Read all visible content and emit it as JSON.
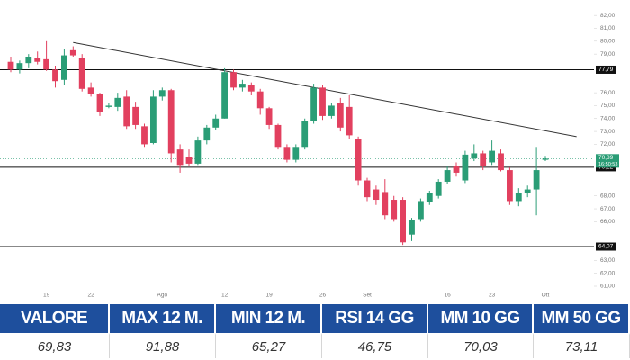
{
  "chart_data": {
    "type": "candlestick",
    "categories": [
      null,
      null,
      null,
      null,
      "19",
      null,
      null,
      null,
      null,
      "22",
      null,
      null,
      null,
      null,
      null,
      null,
      null,
      "Ago",
      null,
      null,
      null,
      null,
      null,
      null,
      "12",
      null,
      null,
      null,
      null,
      "19",
      null,
      null,
      null,
      null,
      null,
      "26",
      null,
      null,
      null,
      null,
      "Set",
      null,
      null,
      null,
      null,
      null,
      null,
      null,
      null,
      "16",
      null,
      null,
      null,
      null,
      "23",
      null,
      null,
      null,
      null,
      null,
      "Ott"
    ],
    "open": [
      78.4,
      77.8,
      78.3,
      78.7,
      78.6,
      77.8,
      77.0,
      79.3,
      78.7,
      76.4,
      75.9,
      74.9,
      74.9,
      75.7,
      74.9,
      73.4,
      72.1,
      75.7,
      76.2,
      71.6,
      71.0,
      70.5,
      72.3,
      73.3,
      74.0,
      77.6,
      76.4,
      76.6,
      76.1,
      74.8,
      73.5,
      71.8,
      70.8,
      71.8,
      73.8,
      76.4,
      74.2,
      75.2,
      74.9,
      72.4,
      69.2,
      68.5,
      68.3,
      67.7,
      67.7,
      65.0,
      66.2,
      67.5,
      68.0,
      69.1,
      70.3,
      69.2,
      70.9,
      71.3,
      70.6,
      71.3,
      70.0,
      67.6,
      68.2,
      68.5,
      70.8
    ],
    "high": [
      78.8,
      78.5,
      79.0,
      79.2,
      80.0,
      78.1,
      79.4,
      79.6,
      79.0,
      76.8,
      76.0,
      75.2,
      76.0,
      76.2,
      75.3,
      73.6,
      76.2,
      76.4,
      76.3,
      72.0,
      71.6,
      72.6,
      73.5,
      74.3,
      77.9,
      77.8,
      77.0,
      76.8,
      76.3,
      74.9,
      73.6,
      72.0,
      72.0,
      74.0,
      76.7,
      76.6,
      75.2,
      75.6,
      75.8,
      72.6,
      69.4,
      68.8,
      69.3,
      68.0,
      67.9,
      66.3,
      67.8,
      68.4,
      69.3,
      70.3,
      70.6,
      71.5,
      72.0,
      71.5,
      72.3,
      71.6,
      70.2,
      68.6,
      68.8,
      71.8,
      71.1
    ],
    "low": [
      77.6,
      77.5,
      77.9,
      78.2,
      77.7,
      76.4,
      76.6,
      78.8,
      76.1,
      75.7,
      74.2,
      74.8,
      74.6,
      73.2,
      73.2,
      71.8,
      72.0,
      75.4,
      70.6,
      69.8,
      70.3,
      70.4,
      72.0,
      73.1,
      74.0,
      76.2,
      76.1,
      75.8,
      74.3,
      73.2,
      71.6,
      70.6,
      70.6,
      71.6,
      73.6,
      73.9,
      74.0,
      73.0,
      72.4,
      68.8,
      67.6,
      67.3,
      66.2,
      66.0,
      64.2,
      64.5,
      66.0,
      67.3,
      67.8,
      68.9,
      69.5,
      69.0,
      70.7,
      70.0,
      70.4,
      69.9,
      67.3,
      67.2,
      67.9,
      66.5,
      70.7
    ],
    "close": [
      77.8,
      78.3,
      78.8,
      78.4,
      77.8,
      76.9,
      78.9,
      78.9,
      76.3,
      75.9,
      74.5,
      75.0,
      75.6,
      73.4,
      73.5,
      72.0,
      75.7,
      76.2,
      71.3,
      70.4,
      70.5,
      72.3,
      73.3,
      74.0,
      77.6,
      76.4,
      76.7,
      76.1,
      74.8,
      73.5,
      71.8,
      70.8,
      71.8,
      73.8,
      76.4,
      74.2,
      75.0,
      73.3,
      72.7,
      69.2,
      67.9,
      67.7,
      66.5,
      66.2,
      64.4,
      66.1,
      67.6,
      68.2,
      69.1,
      70.0,
      69.8,
      71.2,
      71.3,
      70.3,
      71.5,
      70.0,
      67.6,
      68.2,
      68.5,
      70.0,
      70.89
    ],
    "up_color": "#2a9d76",
    "down_color": "#e2405f",
    "ylim": [
      61,
      82.5
    ],
    "yticks": [
      {
        "value": 82,
        "label": "82,00"
      },
      {
        "value": 81,
        "label": "81,00"
      },
      {
        "value": 80,
        "label": "80,00"
      },
      {
        "value": 79,
        "label": "79,00"
      },
      {
        "value": 76,
        "label": "76,00"
      },
      {
        "value": 75,
        "label": "75,00"
      },
      {
        "value": 74,
        "label": "74,00"
      },
      {
        "value": 73,
        "label": "73,00"
      },
      {
        "value": 72,
        "label": "72,00"
      },
      {
        "value": 68,
        "label": "68,00"
      },
      {
        "value": 67,
        "label": "67,00"
      },
      {
        "value": 66,
        "label": "66,00"
      },
      {
        "value": 63,
        "label": "63,00"
      },
      {
        "value": 62,
        "label": "62,00"
      },
      {
        "value": 61,
        "label": "61,00"
      }
    ],
    "levels": [
      {
        "value": 77.79,
        "label": "77,79"
      },
      {
        "value": 70.22,
        "label": "70,22"
      },
      {
        "value": 64.07,
        "label": "64,07"
      }
    ],
    "current": {
      "value": 70.89,
      "label": "70,89",
      "countdown": "16:50:53"
    },
    "trendline": {
      "start": {
        "index": 7,
        "value": 79.9
      },
      "end": {
        "index": 63.5,
        "value": 72.6
      }
    }
  },
  "table": {
    "headers": [
      "VALORE",
      "MAX 12 M.",
      "MIN 12 M.",
      "RSI 14 GG",
      "MM 10 GG",
      "MM 50 GG"
    ],
    "rows": [
      [
        "69,83",
        "91,88",
        "65,27",
        "46,75",
        "70,03",
        "73,11"
      ]
    ]
  }
}
